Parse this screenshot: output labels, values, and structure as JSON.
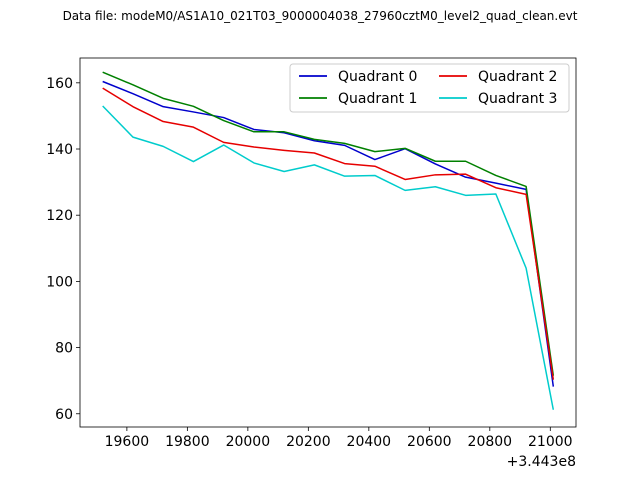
{
  "figure": {
    "title": "Data file: modeM0/AS1A10_021T03_9000004038_27960cztM0_level2_quad_clean.evt",
    "x_offset_label": "+3.443e8"
  },
  "chart_data": {
    "type": "line",
    "title": "Data file: modeM0/AS1A10_021T03_9000004038_27960cztM0_level2_quad_clean.evt",
    "xlabel": "",
    "ylabel": "",
    "x_offset": 344300000,
    "x_offset_label": "+3.443e8",
    "xlim": [
      19445,
      21085
    ],
    "ylim": [
      56,
      167.5
    ],
    "xticks": [
      19600,
      19800,
      20000,
      20200,
      20400,
      20600,
      20800,
      21000
    ],
    "yticks": [
      60,
      80,
      100,
      120,
      140,
      160
    ],
    "grid": false,
    "legend": {
      "location": "upper right",
      "columns": 2
    },
    "x": [
      19520,
      19620,
      19720,
      19820,
      19920,
      20020,
      20120,
      20220,
      20320,
      20420,
      20520,
      20620,
      20720,
      20820,
      20920,
      21010
    ],
    "series": [
      {
        "name": "Quadrant 0",
        "color": "#0000cc",
        "values": [
          160.4,
          156.7,
          152.8,
          151.2,
          149.5,
          145.9,
          144.9,
          142.5,
          141.1,
          136.8,
          140.1,
          135.5,
          131.5,
          129.7,
          127.8,
          68.2
        ]
      },
      {
        "name": "Quadrant 1",
        "color": "#008000",
        "values": [
          163.2,
          159.4,
          155.3,
          152.9,
          148.6,
          145.2,
          145.2,
          142.9,
          141.7,
          139.2,
          140.2,
          136.3,
          136.3,
          132.0,
          128.7,
          71.5
        ]
      },
      {
        "name": "Quadrant 2",
        "color": "#e60000",
        "values": [
          158.4,
          152.8,
          148.3,
          146.6,
          142.0,
          140.6,
          139.6,
          138.8,
          135.6,
          134.8,
          130.8,
          132.2,
          132.4,
          128.3,
          126.3,
          70.3
        ]
      },
      {
        "name": "Quadrant 3",
        "color": "#00cccc",
        "values": [
          153.0,
          143.6,
          140.8,
          136.2,
          141.2,
          135.8,
          133.2,
          135.2,
          131.8,
          132.0,
          127.5,
          128.6,
          126.0,
          126.4,
          104.0,
          61.2
        ]
      }
    ]
  }
}
